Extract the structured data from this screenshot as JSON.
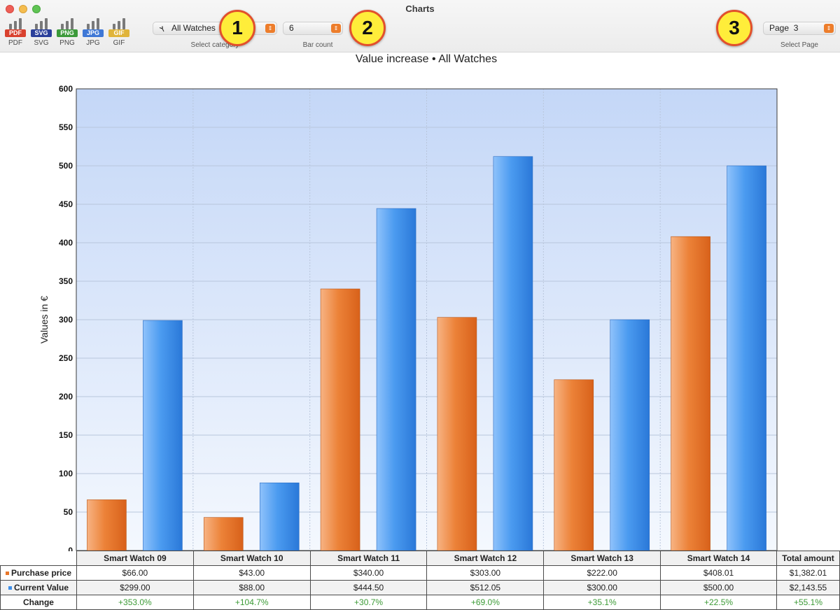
{
  "window": {
    "title": "Charts"
  },
  "toolbar": {
    "exports": [
      {
        "badge": "PDF",
        "label": "PDF",
        "color": "#d9412e"
      },
      {
        "badge": "SVG",
        "label": "SVG",
        "color": "#2a3f9a"
      },
      {
        "badge": "PNG",
        "label": "PNG",
        "color": "#3c9a3a"
      },
      {
        "badge": "JPG",
        "label": "JPG",
        "color": "#3f78d6"
      },
      {
        "badge": "GIF",
        "label": "GIF",
        "color": "#e0b43a"
      }
    ],
    "category": {
      "value": "All Watches",
      "caption": "Select category",
      "icon": "watch-icon"
    },
    "bar_count": {
      "value": "6",
      "caption": "Bar count"
    },
    "page": {
      "value": "Page  3",
      "caption": "Select Page"
    },
    "callouts": [
      "1",
      "2",
      "3"
    ]
  },
  "chart_data": {
    "type": "bar",
    "title": "Value increase • All Watches",
    "ylabel": "Values in €",
    "ylim": [
      0,
      600
    ],
    "yticks": [
      0,
      50,
      100,
      150,
      200,
      250,
      300,
      350,
      400,
      450,
      500,
      550,
      600
    ],
    "grid": true,
    "categories": [
      "Smart Watch 09",
      "Smart Watch 10",
      "Smart Watch 11",
      "Smart Watch 12",
      "Smart Watch 13",
      "Smart Watch 14"
    ],
    "series": [
      {
        "name": "Purchase price",
        "values": [
          66,
          43,
          340,
          303,
          222,
          408.01
        ],
        "color": "#e8772a"
      },
      {
        "name": "Current Value",
        "values": [
          299,
          88,
          444.5,
          512.05,
          300,
          500
        ],
        "color": "#3e8fe8"
      }
    ]
  },
  "table": {
    "total_header": "Total amount",
    "rows": [
      {
        "label": "Purchase price",
        "color": "#e8772a",
        "cells": [
          "$66.00",
          "$43.00",
          "$340.00",
          "$303.00",
          "$222.00",
          "$408.01"
        ],
        "total": "$1,382.01"
      },
      {
        "label": "Current Value",
        "color": "#3e8fe8",
        "cells": [
          "$299.00",
          "$88.00",
          "$444.50",
          "$512.05",
          "$300.00",
          "$500.00"
        ],
        "total": "$2,143.55"
      },
      {
        "label": "Change",
        "color": "#3b9a35",
        "cells": [
          "+353.0%",
          "+104.7%",
          "+30.7%",
          "+69.0%",
          "+35.1%",
          "+22.5%"
        ],
        "total": "+55.1%"
      }
    ]
  }
}
